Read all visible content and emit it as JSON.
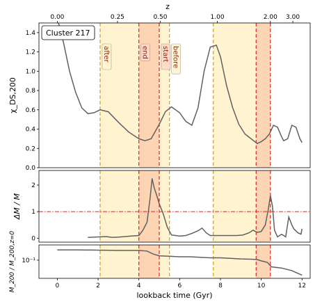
{
  "chart_data": [
    {
      "id": "top",
      "type": "line",
      "cluster_label": "Cluster 217",
      "ylabel": "χ_DS,200",
      "ylim": [
        0,
        1.5
      ],
      "yticks": [
        0.0,
        0.2,
        0.4,
        0.6,
        0.8,
        1.0,
        1.2,
        1.4
      ],
      "ytick_labels": [
        "0.0",
        "0.2",
        "0.4",
        "0.6",
        "0.8",
        "1.0",
        "1.2",
        "1.4"
      ],
      "xlim": [
        -0.9,
        12.4
      ],
      "top_axis": {
        "label": "z",
        "ticks": [
          {
            "t": 0.0,
            "label": "0.00"
          },
          {
            "t": 2.95,
            "label": "0.25"
          },
          {
            "t": 5.05,
            "label": "0.50"
          },
          {
            "t": 7.85,
            "label": "1.00"
          },
          {
            "t": 10.45,
            "label": "2.00"
          },
          {
            "t": 11.55,
            "label": "3.00"
          }
        ]
      },
      "series": [
        {
          "values_x": [
            0.0,
            0.3,
            0.6,
            0.9,
            1.2,
            1.5,
            1.8,
            2.1,
            2.5,
            3.0,
            3.5,
            4.0,
            4.3,
            4.6,
            5.0,
            5.3,
            5.6,
            6.0,
            6.3,
            6.6,
            6.9,
            7.2,
            7.5,
            7.8,
            8.0,
            8.3,
            8.6,
            8.9,
            9.2,
            9.5,
            9.8,
            10.0,
            10.2,
            10.4,
            10.6,
            10.8,
            11.0,
            11.1,
            11.3,
            11.5,
            11.7,
            11.9,
            12.0
          ],
          "values_y": [
            1.55,
            1.3,
            1.0,
            0.78,
            0.62,
            0.56,
            0.57,
            0.6,
            0.58,
            0.47,
            0.37,
            0.3,
            0.28,
            0.3,
            0.45,
            0.58,
            0.63,
            0.57,
            0.48,
            0.44,
            0.62,
            1.0,
            1.25,
            1.27,
            1.15,
            0.85,
            0.62,
            0.45,
            0.35,
            0.3,
            0.25,
            0.27,
            0.3,
            0.35,
            0.44,
            0.42,
            0.32,
            0.28,
            0.3,
            0.44,
            0.42,
            0.3,
            0.26
          ]
        }
      ],
      "annotations": [
        {
          "label": "after",
          "x": 2.1,
          "fill": "#fff4cf"
        },
        {
          "label": "end",
          "x": 4.0,
          "fill": "#ffd9c8"
        },
        {
          "label": "start",
          "x": 5.0,
          "fill": "#ffd9c8"
        },
        {
          "label": "before",
          "x": 5.5,
          "fill": "#fff4cf"
        }
      ]
    },
    {
      "id": "middle",
      "type": "line",
      "ylabel": "ΔM / M",
      "ylim": [
        -0.15,
        2.55
      ],
      "yticks": [
        0,
        1,
        2
      ],
      "ytick_labels": [
        "0",
        "1",
        "2"
      ],
      "threshold": 1.0,
      "series": [
        {
          "values_x": [
            1.5,
            1.8,
            2.1,
            2.4,
            2.7,
            3.0,
            3.3,
            3.6,
            4.0,
            4.2,
            4.4,
            4.55,
            4.65,
            4.75,
            4.9,
            5.0,
            5.2,
            5.4,
            5.6,
            5.8,
            6.0,
            6.3,
            6.6,
            6.9,
            7.1,
            7.3,
            7.5,
            7.7,
            7.9,
            8.2,
            8.5,
            8.8,
            9.1,
            9.4,
            9.6,
            9.8,
            10.0,
            10.2,
            10.35,
            10.45,
            10.55,
            10.65,
            10.8,
            11.0,
            11.1,
            11.2,
            11.35,
            11.5,
            11.6,
            11.8,
            11.95,
            12.0
          ],
          "values_y": [
            0.03,
            0.04,
            0.05,
            0.06,
            0.03,
            0.04,
            0.06,
            0.08,
            0.1,
            0.3,
            0.6,
            1.5,
            2.25,
            1.9,
            1.55,
            1.3,
            0.9,
            0.4,
            0.12,
            0.1,
            0.08,
            0.1,
            0.18,
            0.28,
            0.38,
            0.2,
            0.1,
            0.1,
            0.1,
            0.1,
            0.1,
            0.1,
            0.12,
            0.2,
            0.3,
            0.22,
            0.25,
            0.5,
            1.1,
            1.6,
            1.2,
            0.3,
            0.05,
            0.15,
            0.1,
            0.05,
            0.8,
            0.5,
            0.35,
            0.2,
            0.15,
            0.35
          ]
        }
      ]
    },
    {
      "id": "bottom",
      "type": "line",
      "ylabel": "M_200 / M_200,z=0",
      "ylim_log": [
        0.025,
        0.32
      ],
      "yticks": [
        0.1
      ],
      "ytick_labels": [
        "10⁻¹"
      ],
      "xlabel": "lookback time (Gyr)",
      "xticks": [
        0,
        2,
        4,
        6,
        8,
        10,
        12
      ],
      "xtick_labels": [
        "0",
        "2",
        "4",
        "6",
        "8",
        "10",
        "12"
      ],
      "series": [
        {
          "values_x": [
            0.0,
            1.0,
            2.0,
            3.0,
            4.0,
            4.4,
            4.7,
            5.0,
            5.5,
            6.0,
            6.5,
            7.0,
            7.5,
            8.0,
            8.5,
            9.0,
            9.5,
            9.8,
            10.0,
            10.3,
            10.5,
            11.0,
            11.5,
            12.0
          ],
          "values_y": [
            0.22,
            0.22,
            0.215,
            0.21,
            0.21,
            0.2,
            0.16,
            0.14,
            0.135,
            0.13,
            0.13,
            0.125,
            0.12,
            0.12,
            0.115,
            0.11,
            0.108,
            0.105,
            0.095,
            0.085,
            0.06,
            0.055,
            0.045,
            0.032
          ]
        }
      ]
    }
  ],
  "shading": {
    "yellow_regions": [
      [
        2.1,
        5.5
      ],
      [
        7.65,
        10.45
      ]
    ],
    "orange_regions": [
      [
        4.0,
        5.0
      ],
      [
        9.75,
        10.45
      ]
    ],
    "red_lines": [
      4.0,
      5.0,
      9.75,
      10.45
    ],
    "gold_lines": [
      2.1,
      5.5,
      7.65
    ],
    "colors": {
      "yellow": "#fff4cf",
      "orange": "#fdd5b4",
      "red_line": "#d62728",
      "gold_line": "#c9a227",
      "curve": "#606060",
      "threshold": "#d62728"
    }
  }
}
